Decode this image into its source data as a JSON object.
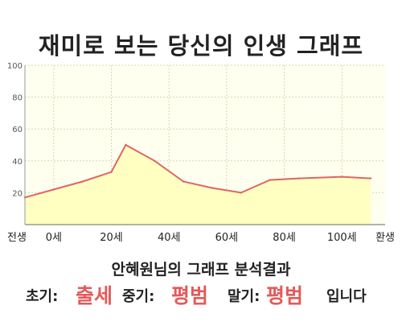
{
  "title": "재미로 보는 당신의 인생 그래프",
  "caption": "안혜원님의 그래프 분석결과",
  "result": {
    "early_label": "초기:",
    "early_value": "출세",
    "middle_label": "중기:",
    "middle_value": "평범",
    "late_label": "말기:",
    "late_value": "평범",
    "ending": "입니다",
    "accent_color": "#e45a5a"
  },
  "chart_data": {
    "type": "area",
    "title": "",
    "xlabel": "",
    "ylabel": "",
    "ylim": [
      0,
      100
    ],
    "y_ticks": [
      "20",
      "40",
      "60",
      "80",
      "100"
    ],
    "x_tick_labels": [
      "전생",
      "0세",
      "20세",
      "40세",
      "60세",
      "80세",
      "100세",
      "환생"
    ],
    "grid": true,
    "fill_color": "#ffffc2",
    "plot_background": "#fffff0",
    "line_color": "#e06464",
    "series": [
      {
        "x": [
          -10,
          0,
          10,
          20,
          25,
          35,
          45,
          55,
          65,
          75,
          85,
          100,
          110
        ],
        "values": [
          17,
          22,
          27,
          33,
          50,
          40,
          27,
          23,
          20,
          28,
          29,
          30,
          29
        ]
      }
    ]
  }
}
